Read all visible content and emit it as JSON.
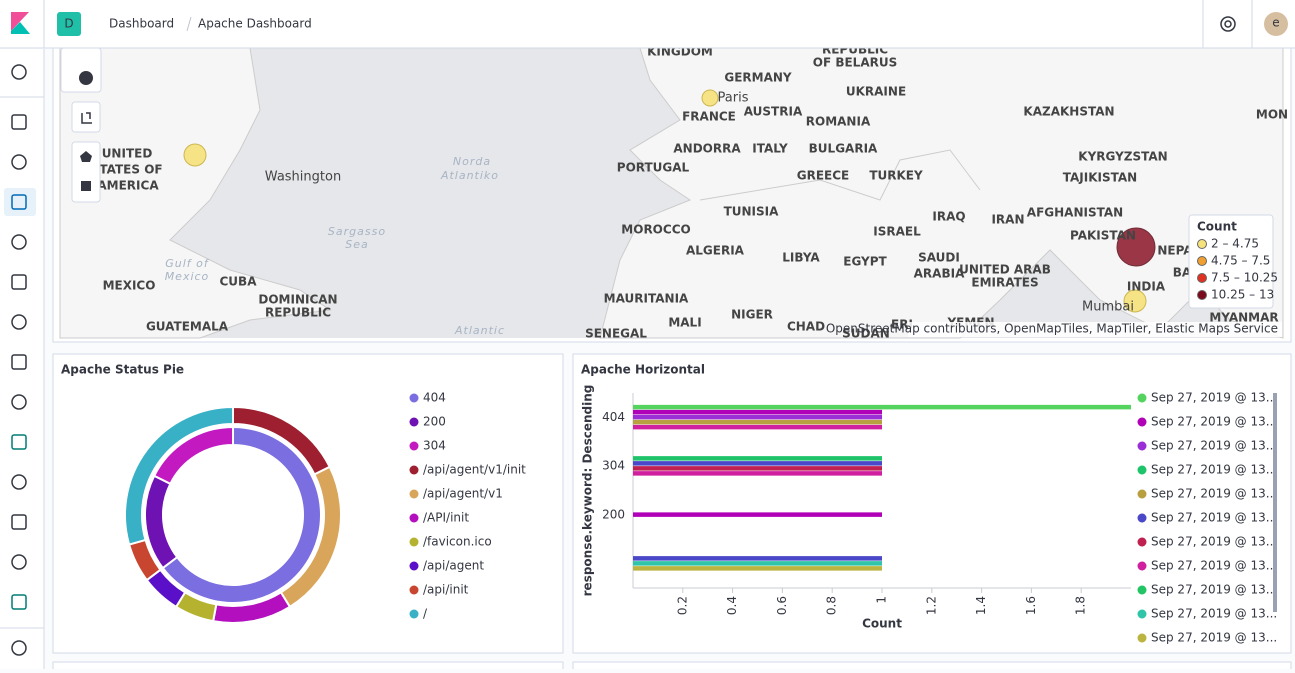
{
  "header": {
    "badge": "D",
    "breadcrumbs": [
      "Dashboard",
      "Apache Dashboard"
    ],
    "avatar": "e"
  },
  "map": {
    "labels": [
      "KINGDOM",
      "REPUBLIC",
      "OF BELARUS",
      "GERMANY",
      "UKRAINE",
      "Paris",
      "AUSTRIA",
      "KAZAKHSTAN",
      "FRANCE",
      "ROMANIA",
      "MON",
      "UNITED",
      "TATES OF",
      "AMERICA",
      "ANDORRA",
      "ITALY",
      "BULGARIA",
      "KYRGYZSTAN",
      "Washington",
      "Norda",
      "Atlantiko",
      "PORTUGAL",
      "GREECE",
      "TURKEY",
      "TAJIKISTAN",
      "TUNISIA",
      "AFGHANISTAN",
      "IRAQ",
      "IRAN",
      "Sargasso",
      "Sea",
      "MOROCCO",
      "ISRAEL",
      "PAKISTAN",
      "NEPA",
      "ALGERIA",
      "LIBYA",
      "EGYPT",
      "SAUDI",
      "ARABIA",
      "UNITED ARAB",
      "EMIRATES",
      "Gulf of",
      "Mexico",
      "MEXICO",
      "CUBA",
      "BA",
      "INDIA",
      "DOMINICAN",
      "REPUBLIC",
      "MAURITANIA",
      "Mumbai",
      "NIGER",
      "MYANMAR",
      "YEMEN",
      "ERI",
      "MALI",
      "GUATEMALA",
      "CHAD",
      "Atlantic",
      "SENEGAL",
      "SUDAN"
    ],
    "legend": {
      "title": "Count",
      "items": [
        {
          "label": "2 – 4.75",
          "color": "#f5e27a"
        },
        {
          "label": "4.75 – 7.5",
          "color": "#f0a030"
        },
        {
          "label": "7.5 – 10.25",
          "color": "#e03020"
        },
        {
          "label": "10.25 – 13",
          "color": "#7a0a1c"
        }
      ]
    },
    "attribution": "OpenStreetMap contributors, OpenMapTiles, MapTiler, Elastic Maps Service"
  },
  "chart_data": [
    {
      "type": "pie",
      "title": "Apache Status Pie",
      "rings": [
        {
          "categories": [
            "404",
            "200",
            "304"
          ],
          "values": [
            11,
            3,
            3
          ],
          "colors": [
            "#7b6ee0",
            "#6e12b4",
            "#c21ac0"
          ]
        },
        {
          "categories": [
            "/api/agent/v1/init",
            "/api/agent/v1",
            "/API/init",
            "/favicon.ico",
            "/api/agent",
            "/api/init",
            "/"
          ],
          "values": [
            3,
            4,
            2,
            1,
            1,
            1,
            5
          ],
          "colors": [
            "#9e1f2f",
            "#d9a55a",
            "#b40fbe",
            "#b5b22f",
            "#5a10c8",
            "#c84630",
            "#38b0c6"
          ]
        }
      ]
    },
    {
      "type": "bar",
      "orientation": "horizontal",
      "title": "Apache Horizontal",
      "ylabel": "response.keyword: Descending",
      "xlabel": "Count",
      "categories": [
        "404",
        "304",
        "200",
        null
      ],
      "xlim": [
        0,
        2
      ],
      "xticks": [
        0.2,
        0.4,
        0.6,
        0.8,
        1,
        1.2,
        1.4,
        1.6,
        1.8
      ],
      "series": [
        {
          "name": "Sep 27, 2019 @ 13...",
          "color": "#54d45e",
          "values": [
            2,
            null,
            null,
            null
          ]
        },
        {
          "name": "Sep 27, 2019 @ 13...",
          "color": "#b000b8",
          "values": [
            1,
            null,
            1,
            null
          ]
        },
        {
          "name": "Sep 27, 2019 @ 13...",
          "color": "#9a2fd6",
          "values": [
            1,
            null,
            null,
            null
          ]
        },
        {
          "name": "Sep 27, 2019 @ 13...",
          "color": "#1fc46a",
          "values": [
            null,
            1,
            null,
            null
          ]
        },
        {
          "name": "Sep 27, 2019 @ 13...",
          "color": "#b8a040",
          "values": [
            1,
            null,
            null,
            null
          ]
        },
        {
          "name": "Sep 27, 2019 @ 13...",
          "color": "#4a48c8",
          "values": [
            null,
            1,
            null,
            1
          ]
        },
        {
          "name": "Sep 27, 2019 @ 13...",
          "color": "#c02050",
          "values": [
            null,
            1,
            null,
            null
          ]
        },
        {
          "name": "Sep 27, 2019 @ 13...",
          "color": "#d020a0",
          "values": [
            1,
            1,
            null,
            null
          ]
        },
        {
          "name": "Sep 27, 2019 @ 13...",
          "color": "#22c464",
          "values": [
            null,
            null,
            null,
            null
          ]
        },
        {
          "name": "Sep 27, 2019 @ 13...",
          "color": "#30c4a8",
          "values": [
            null,
            null,
            null,
            1
          ]
        },
        {
          "name": "Sep 27, 2019 @ 13...",
          "color": "#bcb440",
          "values": [
            null,
            null,
            null,
            1
          ]
        }
      ]
    }
  ]
}
